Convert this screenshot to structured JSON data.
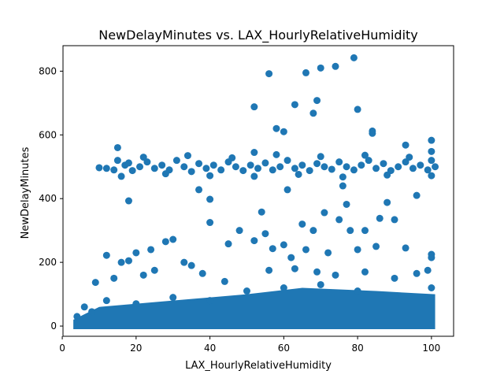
{
  "chart_data": {
    "type": "scatter",
    "title": "NewDelayMinutes vs. LAX_HourlyRelativeHumidity",
    "xlabel": "LAX_HourlyRelativeHumidity",
    "ylabel": "NewDelayMinutes",
    "xlim": [
      0.2,
      106
    ],
    "ylim": [
      -32,
      880
    ],
    "xticks": [
      0,
      20,
      40,
      60,
      80,
      100
    ],
    "yticks": [
      0,
      200,
      400,
      600,
      800
    ],
    "xtick_labels": [
      "0",
      "20",
      "40",
      "60",
      "80",
      "100"
    ],
    "ytick_labels": [
      "0",
      "200",
      "400",
      "600",
      "800"
    ],
    "grid": false,
    "legend": "none",
    "color": "#1f77b4",
    "series": [
      {
        "points": [
          [
            10,
            497
          ],
          [
            12,
            495
          ],
          [
            14,
            490
          ],
          [
            15,
            520
          ],
          [
            17,
            505
          ],
          [
            18,
            512
          ],
          [
            19,
            488
          ],
          [
            21,
            500
          ],
          [
            23,
            515
          ],
          [
            25,
            495
          ],
          [
            27,
            505
          ],
          [
            29,
            490
          ],
          [
            31,
            520
          ],
          [
            33,
            500
          ],
          [
            35,
            485
          ],
          [
            37,
            510
          ],
          [
            39,
            495
          ],
          [
            41,
            505
          ],
          [
            43,
            490
          ],
          [
            45,
            515
          ],
          [
            47,
            500
          ],
          [
            49,
            488
          ],
          [
            51,
            505
          ],
          [
            53,
            495
          ],
          [
            55,
            512
          ],
          [
            57,
            490
          ],
          [
            59,
            500
          ],
          [
            61,
            520
          ],
          [
            63,
            495
          ],
          [
            65,
            505
          ],
          [
            67,
            488
          ],
          [
            69,
            510
          ],
          [
            71,
            500
          ],
          [
            73,
            492
          ],
          [
            75,
            515
          ],
          [
            77,
            500
          ],
          [
            79,
            490
          ],
          [
            81,
            505
          ],
          [
            83,
            520
          ],
          [
            85,
            495
          ],
          [
            87,
            510
          ],
          [
            89,
            488
          ],
          [
            91,
            500
          ],
          [
            93,
            515
          ],
          [
            95,
            495
          ],
          [
            97,
            505
          ],
          [
            99,
            490
          ],
          [
            100,
            520
          ],
          [
            101,
            500
          ],
          [
            16,
            470
          ],
          [
            22,
            530
          ],
          [
            28,
            478
          ],
          [
            34,
            535
          ],
          [
            40,
            472
          ],
          [
            46,
            528
          ],
          [
            52,
            470
          ],
          [
            58,
            538
          ],
          [
            64,
            476
          ],
          [
            70,
            532
          ],
          [
            76,
            468
          ],
          [
            82,
            536
          ],
          [
            88,
            474
          ],
          [
            94,
            530
          ],
          [
            100,
            472
          ],
          [
            15,
            560
          ],
          [
            18,
            393
          ],
          [
            37,
            428
          ],
          [
            40,
            398
          ],
          [
            40,
            325
          ],
          [
            52,
            545
          ],
          [
            52,
            688
          ],
          [
            56,
            792
          ],
          [
            58,
            620
          ],
          [
            60,
            610
          ],
          [
            61,
            428
          ],
          [
            63,
            695
          ],
          [
            66,
            795
          ],
          [
            68,
            668
          ],
          [
            69,
            708
          ],
          [
            70,
            810
          ],
          [
            74,
            815
          ],
          [
            76,
            440
          ],
          [
            77,
            382
          ],
          [
            79,
            842
          ],
          [
            80,
            680
          ],
          [
            84,
            612
          ],
          [
            84,
            605
          ],
          [
            88,
            388
          ],
          [
            93,
            568
          ],
          [
            96,
            410
          ],
          [
            100,
            583
          ],
          [
            100,
            548
          ],
          [
            54,
            358
          ],
          [
            60,
            255
          ],
          [
            65,
            320
          ],
          [
            68,
            300
          ],
          [
            71,
            356
          ],
          [
            75,
            334
          ],
          [
            78,
            300
          ],
          [
            82,
            300
          ],
          [
            86,
            338
          ],
          [
            90,
            334
          ],
          [
            16,
            200
          ],
          [
            20,
            230
          ],
          [
            24,
            240
          ],
          [
            28,
            265
          ],
          [
            30,
            272
          ],
          [
            12,
            222
          ],
          [
            18,
            205
          ],
          [
            33,
            200
          ],
          [
            45,
            258
          ],
          [
            48,
            300
          ],
          [
            52,
            268
          ],
          [
            55,
            290
          ],
          [
            57,
            243
          ],
          [
            62,
            215
          ],
          [
            66,
            240
          ],
          [
            72,
            230
          ],
          [
            80,
            240
          ],
          [
            85,
            250
          ],
          [
            93,
            245
          ],
          [
            100,
            225
          ],
          [
            100,
            215
          ],
          [
            9,
            137
          ],
          [
            14,
            150
          ],
          [
            22,
            160
          ],
          [
            25,
            175
          ],
          [
            35,
            190
          ],
          [
            38,
            165
          ],
          [
            44,
            140
          ],
          [
            56,
            175
          ],
          [
            63,
            180
          ],
          [
            69,
            170
          ],
          [
            74,
            160
          ],
          [
            82,
            170
          ],
          [
            90,
            150
          ],
          [
            96,
            165
          ],
          [
            99,
            175
          ],
          [
            4,
            30
          ],
          [
            6,
            60
          ],
          [
            8,
            45
          ],
          [
            12,
            80
          ],
          [
            20,
            70
          ],
          [
            30,
            90
          ],
          [
            40,
            80
          ],
          [
            50,
            110
          ],
          [
            60,
            120
          ],
          [
            70,
            130
          ],
          [
            80,
            110
          ],
          [
            90,
            95
          ],
          [
            100,
            120
          ]
        ],
        "dense_band": {
          "x_range": [
            3,
            101
          ],
          "y_range": [
            0,
            120
          ]
        }
      }
    ]
  }
}
